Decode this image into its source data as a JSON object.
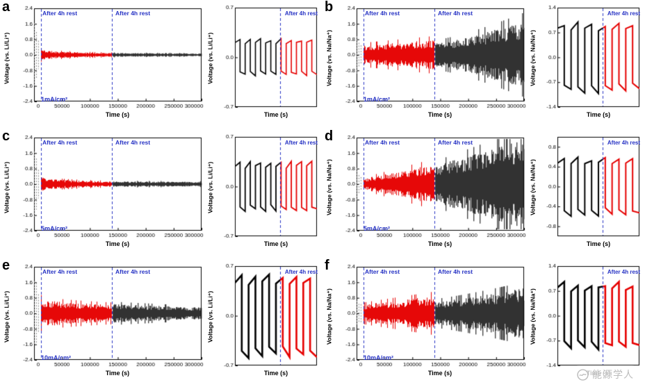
{
  "colors": {
    "red": "#e60000",
    "black": "#000000",
    "gray": "#8a8a8a",
    "blue": "#2733c4"
  },
  "watermark": {
    "text": "能源学人"
  },
  "chart_data": [
    {
      "label": "a",
      "type": "line",
      "seed": 11,
      "main": {
        "ylabel": "Voltage (vs. Li/Li⁺)",
        "xlabel": "Time (s)",
        "ylim": [
          -2.4,
          2.4
        ],
        "yticks": [
          2.4,
          1.6,
          0.8,
          0.0,
          -0.8,
          -1.6,
          -2.4
        ],
        "xlim": [
          0,
          300000
        ],
        "xticks": [
          0,
          50000,
          100000,
          150000,
          200000,
          250000,
          300000
        ],
        "rest_lines": [
          12000,
          140000
        ],
        "annotations": [
          {
            "text": "After 4h rest",
            "x": 14000
          },
          {
            "text": "After 4h rest",
            "x": 143000
          }
        ],
        "current_label": "1mA/cm²",
        "segments": [
          {
            "kind": "spikes",
            "color": "#8a8a8a",
            "x0": 500,
            "x1": 11000,
            "amp0": 2.1,
            "amp1": 0.4
          },
          {
            "kind": "band",
            "color": "#e60000",
            "x0": 12500,
            "x1": 139000,
            "amp0": 0.45,
            "amp1": 0.1,
            "pow": 0.18
          },
          {
            "kind": "band",
            "color": "#000000",
            "x0": 141000,
            "x1": 300000,
            "amp0": 0.1,
            "amp1": 0.07,
            "pow": 1
          }
        ]
      },
      "inset": {
        "ylabel": "Voltage (vs. Li/Li⁺)",
        "xlabel": "Time (s)",
        "ylim": [
          -0.7,
          0.7
        ],
        "yticks": [
          0.7,
          0.0,
          -0.7
        ],
        "annotation": "After 4h rest",
        "split": 0.55,
        "wave": {
          "amp": 0.22,
          "cycles": 8,
          "lw": 1.6
        },
        "colors": [
          "#000000",
          "#e60000"
        ]
      }
    },
    {
      "label": "b",
      "type": "line",
      "seed": 22,
      "main": {
        "ylabel": "Voltage (vs. Na/Na⁺)",
        "xlabel": "Time (s)",
        "ylim": [
          -2.4,
          2.4
        ],
        "yticks": [
          2.4,
          1.6,
          0.8,
          0.0,
          -0.8,
          -1.6,
          -2.4
        ],
        "xlim": [
          0,
          300000
        ],
        "xticks": [
          0,
          50000,
          100000,
          150000,
          200000,
          250000,
          300000
        ],
        "rest_lines": [
          12000,
          140000
        ],
        "annotations": [
          {
            "text": "After 4h rest",
            "x": 14000
          },
          {
            "text": "After 4h rest",
            "x": 143000
          }
        ],
        "current_label": "1mA/cm²",
        "segments": [
          {
            "kind": "spikes",
            "color": "#8a8a8a",
            "x0": 500,
            "x1": 11000,
            "amp0": 1.15,
            "amp1": 0.6
          },
          {
            "kind": "band",
            "color": "#e60000",
            "x0": 12500,
            "x1": 139000,
            "amp0": 0.5,
            "amp1": 0.78,
            "pow": 1
          },
          {
            "kind": "band",
            "color": "#000000",
            "x0": 141000,
            "x1": 300000,
            "amp0": 0.62,
            "amp1": 1.75,
            "pow": 1.3
          }
        ]
      },
      "inset": {
        "ylabel": "Voltage (vs. Na/Na⁺)",
        "xlabel": "Time (s)",
        "ylim": [
          -1.4,
          1.4
        ],
        "yticks": [
          1.4,
          0.7,
          0.0,
          -0.7,
          -1.4
        ],
        "annotation": "After 4h rest",
        "split": 0.55,
        "wave": {
          "amp": 0.85,
          "cycles": 6,
          "lw": 2.0
        },
        "colors": [
          "#000000",
          "#e60000"
        ]
      }
    },
    {
      "label": "c",
      "type": "line",
      "seed": 33,
      "main": {
        "ylabel": "Voltage (vs. Li/Li⁺)",
        "xlabel": "Time (s)",
        "ylim": [
          -2.4,
          2.4
        ],
        "yticks": [
          2.4,
          1.6,
          0.8,
          0.0,
          -0.8,
          -1.6,
          -2.4
        ],
        "xlim": [
          0,
          300000
        ],
        "xticks": [
          0,
          50000,
          100000,
          150000,
          200000,
          250000,
          300000
        ],
        "rest_lines": [
          12000,
          140000
        ],
        "annotations": [
          {
            "text": "After 4h rest",
            "x": 14000
          },
          {
            "text": "After 4h rest",
            "x": 143000
          }
        ],
        "current_label": "5mA/cm²",
        "segments": [
          {
            "kind": "spikes",
            "color": "#8a8a8a",
            "x0": 500,
            "x1": 11000,
            "amp0": 2.1,
            "amp1": 0.4
          },
          {
            "kind": "band",
            "color": "#e60000",
            "x0": 12500,
            "x1": 139000,
            "amp0": 0.55,
            "amp1": 0.14,
            "pow": 0.18
          },
          {
            "kind": "band",
            "color": "#000000",
            "x0": 141000,
            "x1": 300000,
            "amp0": 0.14,
            "amp1": 0.12,
            "pow": 1
          }
        ]
      },
      "inset": {
        "ylabel": "Voltage (vs. Li/Li⁺)",
        "xlabel": "Time (s)",
        "ylim": [
          -0.7,
          0.7
        ],
        "yticks": [
          0.7,
          0.0,
          -0.7
        ],
        "annotation": "After 4h rest",
        "split": 0.55,
        "wave": {
          "amp": 0.3,
          "cycles": 8,
          "lw": 1.8
        },
        "colors": [
          "#000000",
          "#e60000"
        ]
      }
    },
    {
      "label": "d",
      "type": "line",
      "seed": 44,
      "main": {
        "ylabel": "Voltage (vs. Na/Na⁺)",
        "xlabel": "Time (s)",
        "ylim": [
          -2.4,
          2.4
        ],
        "yticks": [
          2.4,
          1.6,
          0.8,
          0.0,
          -0.8,
          -1.6,
          -2.4
        ],
        "xlim": [
          0,
          300000
        ],
        "xticks": [
          0,
          50000,
          100000,
          150000,
          200000,
          250000,
          300000
        ],
        "rest_lines": [
          12000,
          140000
        ],
        "annotations": [
          {
            "text": "After 4h rest",
            "x": 14000
          },
          {
            "text": "After 4h rest",
            "x": 143000
          }
        ],
        "current_label": "5mA/cm²",
        "segments": [
          {
            "kind": "spikes",
            "color": "#8a8a8a",
            "x0": 500,
            "x1": 11000,
            "amp0": 0.9,
            "amp1": 0.5
          },
          {
            "kind": "band",
            "color": "#e60000",
            "x0": 12500,
            "x1": 139000,
            "amp0": 0.28,
            "amp1": 1.05,
            "pow": 1
          },
          {
            "kind": "band",
            "color": "#000000",
            "x0": 141000,
            "x1": 300000,
            "amp0": 0.95,
            "amp1": 2.3,
            "pow": 1
          }
        ]
      },
      "inset": {
        "ylabel": "Voltage (vs. Na/Na⁺)",
        "xlabel": "Time (s)",
        "ylim": [
          -1.0,
          1.0
        ],
        "yticks": [
          0.8,
          0.4,
          0.0,
          -0.4,
          -0.8
        ],
        "annotation": "After 4h rest",
        "split": 0.55,
        "wave": {
          "amp": 0.5,
          "cycles": 6,
          "lw": 2.0
        },
        "colors": [
          "#000000",
          "#e60000"
        ]
      }
    },
    {
      "label": "e",
      "type": "line",
      "seed": 55,
      "main": {
        "ylabel": "Voltage (vs. Li/Li⁺)",
        "xlabel": "Time (s)",
        "ylim": [
          -2.4,
          2.4
        ],
        "yticks": [
          2.4,
          1.6,
          0.8,
          0.0,
          -0.8,
          -1.6,
          -2.4
        ],
        "xlim": [
          0,
          300000
        ],
        "xticks": [
          0,
          50000,
          100000,
          150000,
          200000,
          250000,
          300000
        ],
        "rest_lines": [
          12000,
          140000
        ],
        "annotations": [
          {
            "text": "After 4h rest",
            "x": 14000
          },
          {
            "text": "After 4h rest",
            "x": 143000
          }
        ],
        "current_label": "10mA/cm²",
        "segments": [
          {
            "kind": "spikes",
            "color": "#8a8a8a",
            "x0": 500,
            "x1": 11000,
            "amp0": 2.2,
            "amp1": 0.7
          },
          {
            "kind": "band",
            "color": "#e60000",
            "x0": 12500,
            "x1": 139000,
            "amp0": 0.75,
            "amp1": 0.45,
            "pow": 0.5
          },
          {
            "kind": "band",
            "color": "#000000",
            "x0": 141000,
            "x1": 300000,
            "amp0": 0.48,
            "amp1": 0.3,
            "pow": 1
          }
        ]
      },
      "inset": {
        "ylabel": "Voltage (vs. Li/Li⁺)",
        "xlabel": "Time (s)",
        "ylim": [
          -0.7,
          0.7
        ],
        "yticks": [
          0.7,
          0.0,
          -0.7
        ],
        "annotation": "After 4h rest",
        "split": 0.55,
        "wave": {
          "amp": 0.5,
          "cycles": 6,
          "lw": 2.6
        },
        "colors": [
          "#000000",
          "#e60000"
        ]
      }
    },
    {
      "label": "f",
      "type": "line",
      "seed": 66,
      "main": {
        "ylabel": "Voltage (vs. Na/Na⁺)",
        "xlabel": "Time (s)",
        "ylim": [
          -2.4,
          2.4
        ],
        "yticks": [
          2.4,
          1.6,
          0.8,
          0.0,
          -0.8,
          -1.6,
          -2.4
        ],
        "xlim": [
          0,
          300000
        ],
        "xticks": [
          0,
          50000,
          100000,
          150000,
          200000,
          250000,
          300000
        ],
        "rest_lines": [
          12000,
          140000
        ],
        "annotations": [
          {
            "text": "After 4h rest",
            "x": 14000
          },
          {
            "text": "After 4h rest",
            "x": 143000
          }
        ],
        "current_label": "10mA/cm²",
        "segments": [
          {
            "kind": "spikes",
            "color": "#8a8a8a",
            "x0": 500,
            "x1": 11000,
            "amp0": 1.05,
            "amp1": 0.6
          },
          {
            "kind": "band",
            "color": "#e60000",
            "x0": 12500,
            "x1": 139000,
            "amp0": 0.45,
            "amp1": 0.9,
            "pow": 1
          },
          {
            "kind": "band",
            "color": "#000000",
            "x0": 141000,
            "x1": 300000,
            "amp0": 0.6,
            "amp1": 1.3,
            "pow": 1.2
          }
        ]
      },
      "inset": {
        "ylabel": "Voltage (vs. Na/Na⁺)",
        "xlabel": "Time (s)",
        "ylim": [
          -1.4,
          1.4
        ],
        "yticks": [
          1.4,
          0.7,
          0.0,
          -0.7,
          -1.4
        ],
        "annotation": "After 4h rest",
        "split": 0.55,
        "wave": {
          "amp": 0.8,
          "cycles": 6,
          "lw": 2.6
        },
        "colors": [
          "#000000",
          "#e60000"
        ]
      }
    }
  ]
}
